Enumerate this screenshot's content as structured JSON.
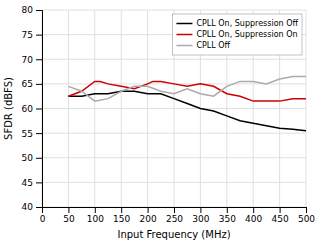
{
  "chart_data": {
    "type": "line",
    "xlabel": "Input Frequency (MHz)",
    "ylabel": "SFDR (dBFS)",
    "xlim": [
      0,
      500
    ],
    "ylim": [
      40,
      80
    ],
    "xticks": [
      0,
      50,
      100,
      150,
      200,
      250,
      300,
      350,
      400,
      450,
      500
    ],
    "yticks": [
      40,
      45,
      50,
      55,
      60,
      65,
      70,
      75,
      80
    ],
    "grid": true,
    "legend": "upper right",
    "series": [
      {
        "name": "CPLL On, Suppression Off",
        "color": "#000000",
        "x": [
          50,
          75,
          100,
          125,
          150,
          175,
          200,
          225,
          250,
          275,
          300,
          325,
          350,
          375,
          400,
          425,
          450,
          475,
          500
        ],
        "values": [
          62.5,
          62.5,
          63.0,
          63.0,
          63.5,
          63.5,
          63.0,
          63.0,
          62.0,
          61.0,
          60.0,
          59.5,
          58.5,
          57.5,
          57.0,
          56.5,
          56.0,
          55.8,
          55.5
        ]
      },
      {
        "name": "CPLL On, Suppression On",
        "color": "#cc0000",
        "x": [
          50,
          75,
          100,
          110,
          125,
          150,
          175,
          200,
          210,
          225,
          250,
          275,
          300,
          325,
          350,
          375,
          400,
          425,
          450,
          475,
          500
        ],
        "values": [
          62.5,
          63.5,
          65.5,
          65.5,
          65.0,
          64.5,
          64.0,
          65.0,
          65.5,
          65.5,
          65.0,
          64.5,
          65.0,
          64.5,
          63.0,
          62.5,
          61.5,
          61.5,
          61.5,
          62.0,
          62.0
        ]
      },
      {
        "name": "CPLL Off",
        "color": "#aaaaaa",
        "x": [
          50,
          75,
          100,
          125,
          150,
          175,
          200,
          225,
          250,
          275,
          300,
          325,
          350,
          375,
          400,
          425,
          450,
          475,
          500
        ],
        "values": [
          64.5,
          63.5,
          61.5,
          62.0,
          63.5,
          64.5,
          64.5,
          63.5,
          63.0,
          64.0,
          63.0,
          62.5,
          64.5,
          65.5,
          65.5,
          65.0,
          66.0,
          66.5,
          66.5
        ]
      }
    ]
  }
}
